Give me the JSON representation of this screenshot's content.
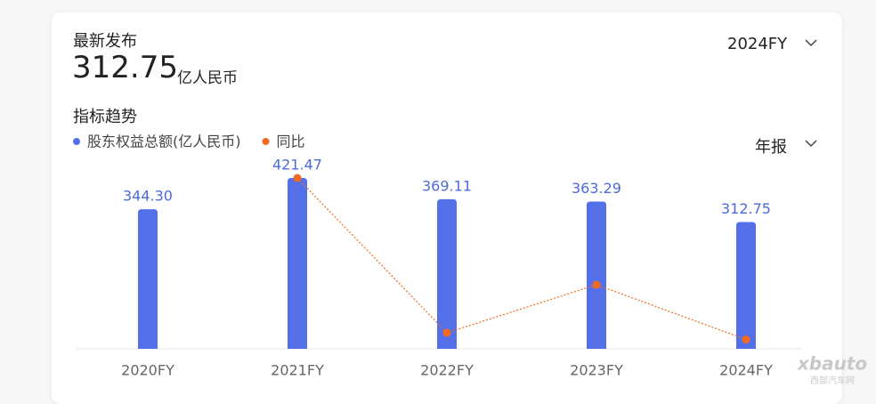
{
  "header": {
    "label": "最新发布",
    "value": "312.75",
    "unit": "亿人民币",
    "period": "2024FY",
    "section": "指标趋势",
    "report_type": "年报"
  },
  "watermark": {
    "brand": "xbauto",
    "site": "西部汽车网"
  },
  "chart_data": {
    "type": "bar",
    "categories": [
      "2020FY",
      "2021FY",
      "2022FY",
      "2023FY",
      "2024FY"
    ],
    "series": [
      {
        "name": "股东权益总额(亿人民币)",
        "type": "bar",
        "color": "#5470e8",
        "values": [
          344.3,
          421.47,
          369.11,
          363.29,
          312.75
        ],
        "value_labels": [
          "344.30",
          "421.47",
          "369.11",
          "363.29",
          "312.75"
        ]
      },
      {
        "name": "同比",
        "type": "line",
        "axis": "y2",
        "color": "#f06a1f",
        "values": [
          null,
          22.4,
          -12.4,
          -1.6,
          -13.9
        ]
      }
    ],
    "ylim": [
      0,
      450
    ],
    "y2lim": [
      -16,
      25
    ]
  }
}
